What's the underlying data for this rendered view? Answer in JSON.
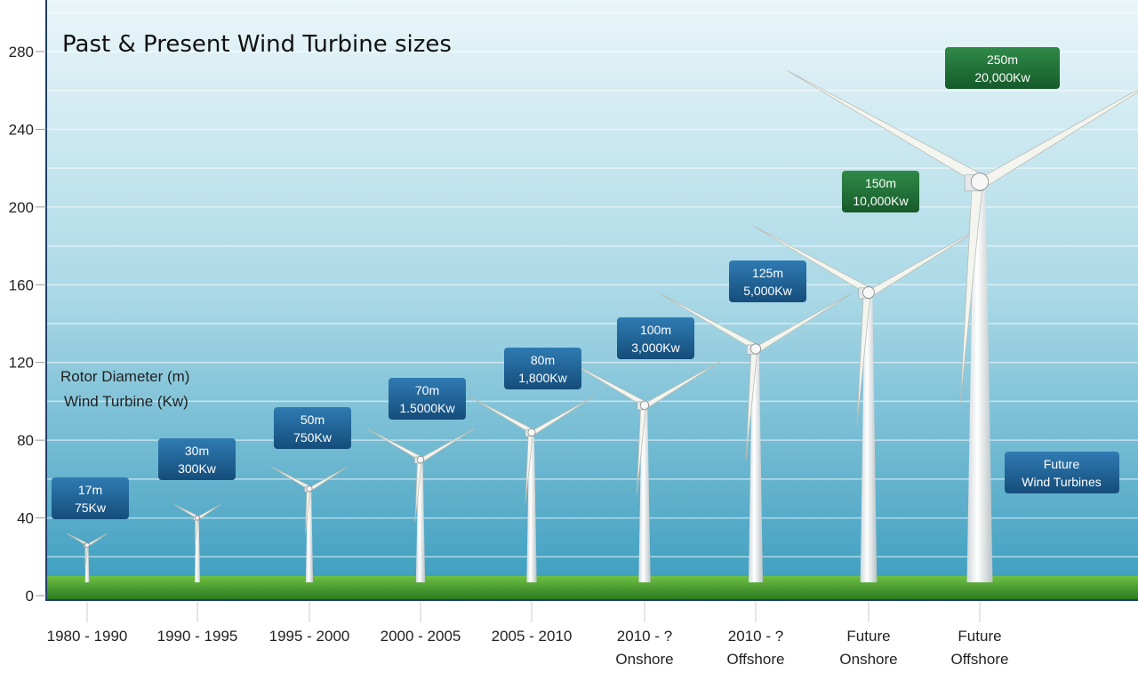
{
  "chart_data": {
    "type": "bar",
    "title": "Past & Present Wind Turbine sizes",
    "legend": [
      "Rotor Diameter (m)",
      "Wind Turbine (Kw)"
    ],
    "legend_position": "left",
    "ylim": [
      0,
      280
    ],
    "yticks": [
      "0",
      "40",
      "80",
      "120",
      "160",
      "200",
      "240",
      "280"
    ],
    "grid": true,
    "categories": [
      [
        "1980 - 1990"
      ],
      [
        "1990 - 1995"
      ],
      [
        "1995 - 2000"
      ],
      [
        "2000 - 2005"
      ],
      [
        "2005 - 2010"
      ],
      [
        "2010 - ?",
        "Onshore"
      ],
      [
        "2010 - ?",
        "Offshore"
      ],
      [
        "Future",
        "Onshore"
      ],
      [
        "Future",
        "Offshore"
      ]
    ],
    "hub_height": [
      26,
      40,
      55,
      70,
      84,
      98,
      127,
      156,
      213
    ],
    "rotor_diameter_m": [
      17,
      30,
      50,
      70,
      80,
      100,
      125,
      150,
      250
    ],
    "labels": [
      [
        "17m",
        "75Kw"
      ],
      [
        "30m",
        "300Kw"
      ],
      [
        "50m",
        "750Kw"
      ],
      [
        "70m",
        "1.5000Kw"
      ],
      [
        "80m",
        "1,800Kw"
      ],
      [
        "100m",
        "3,000Kw"
      ],
      [
        "125m",
        "5,000Kw"
      ],
      [
        "150m",
        "10,000Kw"
      ],
      [
        "250m",
        "20,000Kw"
      ]
    ],
    "label_colors": [
      "#1b5f92",
      "#1b5f92",
      "#1b5f92",
      "#1b5f92",
      "#1b5f92",
      "#1b5f92",
      "#1b5f92",
      "#1e6b36",
      "#1e6b36"
    ],
    "annotation": [
      "Future",
      "Wind Turbines"
    ]
  },
  "colors": {
    "sky_top": "#e6f4f8",
    "sky_bottom": "#3d9fc0",
    "grass": "#3f9a2a",
    "box_blue": "#1b5f92",
    "box_green": "#1e6b36"
  }
}
